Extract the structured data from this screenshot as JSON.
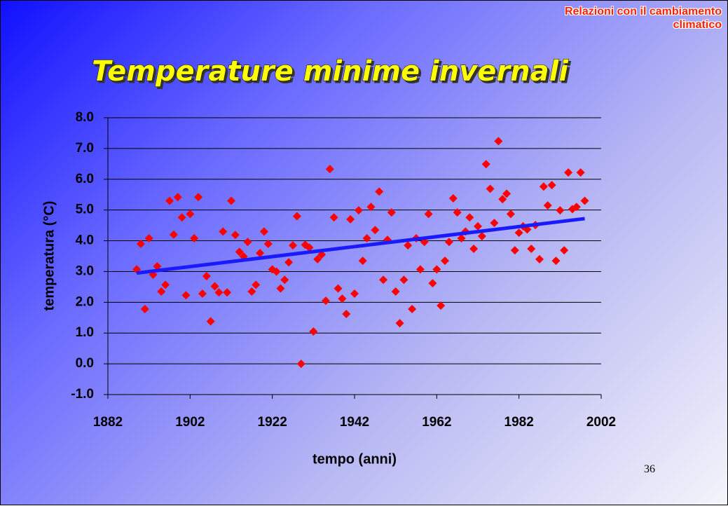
{
  "header": "Relazioni con il cambiamento climatico",
  "page_number": "36",
  "chart_data": {
    "type": "scatter",
    "title": "Temperature minime invernali",
    "x_label": "tempo (anni)",
    "y_label": "temperatura (°C)",
    "x": [
      1889,
      1890,
      1891,
      1892,
      1893,
      1894,
      1895,
      1896,
      1897,
      1898,
      1899,
      1900,
      1901,
      1902,
      1903,
      1904,
      1905,
      1906,
      1907,
      1908,
      1909,
      1910,
      1911,
      1912,
      1913,
      1914,
      1915,
      1916,
      1917,
      1918,
      1919,
      1920,
      1921,
      1922,
      1923,
      1924,
      1925,
      1926,
      1927,
      1928,
      1929,
      1930,
      1931,
      1932,
      1933,
      1934,
      1935,
      1936,
      1937,
      1938,
      1939,
      1940,
      1941,
      1942,
      1943,
      1944,
      1945,
      1946,
      1947,
      1948,
      1949,
      1950,
      1951,
      1952,
      1953,
      1954,
      1955,
      1956,
      1957,
      1958,
      1959,
      1960,
      1961,
      1962,
      1963,
      1964,
      1965,
      1966,
      1967,
      1968,
      1969,
      1970,
      1971,
      1972,
      1973,
      1974,
      1975,
      1976,
      1977,
      1978,
      1979,
      1980,
      1981,
      1982,
      1983,
      1984,
      1985,
      1986,
      1987,
      1988,
      1989,
      1990,
      1991,
      1992,
      1993,
      1994,
      1995,
      1996,
      1997,
      1998
    ],
    "series": [
      {
        "color": "#ff0000",
        "values": [
          3.07,
          3.9,
          1.78,
          4.08,
          2.9,
          3.17,
          2.35,
          2.57,
          5.3,
          4.2,
          5.42,
          4.76,
          2.23,
          4.87,
          4.08,
          5.42,
          2.28,
          2.85,
          1.38,
          2.52,
          2.32,
          4.3,
          2.32,
          5.3,
          4.19,
          3.64,
          3.49,
          3.96,
          2.35,
          2.57,
          3.6,
          4.3,
          3.9,
          3.07,
          3.0,
          2.45,
          2.73,
          3.3,
          3.85,
          4.8,
          0.0,
          3.87,
          3.78,
          1.05,
          3.4,
          3.55,
          2.05,
          6.33,
          4.76,
          2.45,
          2.12,
          1.62,
          4.7,
          2.28,
          4.99,
          3.35,
          4.08,
          5.1,
          4.35,
          5.6,
          2.73,
          4.03,
          4.92,
          2.35,
          1.32,
          2.73,
          3.85,
          1.78,
          4.08,
          3.07,
          3.96,
          4.87,
          2.62,
          3.07,
          1.89,
          3.35,
          3.96,
          5.38,
          4.92,
          4.08,
          4.3,
          4.76,
          3.74,
          4.47,
          4.15,
          6.49,
          5.69,
          4.58,
          7.24,
          5.35,
          5.53,
          4.87,
          3.69,
          4.26,
          4.47,
          4.37,
          3.74,
          4.51,
          3.4,
          5.76,
          5.15,
          5.81,
          3.35,
          4.99,
          3.69,
          6.22,
          5.03,
          5.1,
          6.22,
          5.3
        ]
      }
    ],
    "trend": {
      "color": "#1a1aff",
      "x": [
        1889,
        1998
      ],
      "values": [
        2.95,
        4.72
      ]
    },
    "xlim": [
      1882,
      2002
    ],
    "xticks": [
      1882,
      1902,
      1922,
      1942,
      1962,
      1982,
      2002
    ],
    "ylim": [
      -1,
      8
    ],
    "yticks": [
      {
        "value": -1,
        "label": "-1.0"
      },
      {
        "value": 0,
        "label": "0.0"
      },
      {
        "value": 1,
        "label": "1.0"
      },
      {
        "value": 2,
        "label": "2.0"
      },
      {
        "value": 3,
        "label": "3.0"
      },
      {
        "value": 4,
        "label": "4.0"
      },
      {
        "value": 5,
        "label": "5.0"
      },
      {
        "value": 6,
        "label": "6.0"
      },
      {
        "value": 7,
        "label": "7.0"
      },
      {
        "value": 8,
        "label": "8.0"
      }
    ],
    "grid": true
  }
}
